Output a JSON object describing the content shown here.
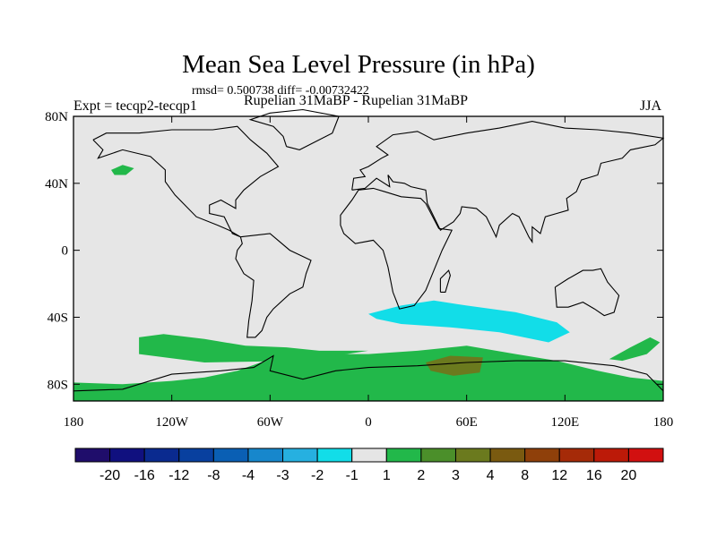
{
  "chart_data": {
    "type": "heatmap",
    "title": "Mean Sea Level Pressure (in hPa)",
    "stats": "rmsd= 0.500738 diff= -0.00732422",
    "left_label": "Expt = tecqp2-tecqp1",
    "center_label": "Rupelian  31MaBP - Rupelian  31MaBP",
    "right_label": "JJA",
    "projection": "cylindrical equidistant",
    "xlim": [
      -180,
      180
    ],
    "ylim": [
      -90,
      80
    ],
    "x_ticks": [
      {
        "value": -180,
        "label": "180"
      },
      {
        "value": -120,
        "label": "120W"
      },
      {
        "value": -60,
        "label": "60W"
      },
      {
        "value": 0,
        "label": "0"
      },
      {
        "value": 60,
        "label": "60E"
      },
      {
        "value": 120,
        "label": "120E"
      },
      {
        "value": 180,
        "label": "180"
      }
    ],
    "y_ticks": [
      {
        "value": 80,
        "label": "80N"
      },
      {
        "value": 40,
        "label": "40N"
      },
      {
        "value": 0,
        "label": "0"
      },
      {
        "value": -40,
        "label": "40S"
      },
      {
        "value": -80,
        "label": "80S"
      }
    ],
    "colorbar": {
      "labels": [
        "-20",
        "-16",
        "-12",
        "-8",
        "-4",
        "-3",
        "-2",
        "-1",
        "1",
        "2",
        "3",
        "4",
        "8",
        "12",
        "16",
        "20"
      ],
      "colors": [
        "#1f0d6b",
        "#10107f",
        "#0a2a8f",
        "#08409f",
        "#0a5fb4",
        "#1787cc",
        "#26b0e0",
        "#12dde8",
        "#e5e5e5",
        "#22b84a",
        "#4b8f2a",
        "#6b7a1e",
        "#7a5a10",
        "#8f400a",
        "#a52a08",
        "#bc1a08",
        "#d21010"
      ]
    },
    "regions": [
      {
        "level": "1 to 2",
        "color": "#22b84a",
        "points": [
          [
            -180,
            -79
          ],
          [
            -150,
            -80
          ],
          [
            -120,
            -78
          ],
          [
            -100,
            -76
          ],
          [
            -80,
            -72
          ],
          [
            -60,
            -65
          ],
          [
            -30,
            -62
          ],
          [
            0,
            -62
          ],
          [
            30,
            -60
          ],
          [
            60,
            -57
          ],
          [
            90,
            -62
          ],
          [
            115,
            -66
          ],
          [
            140,
            -72
          ],
          [
            160,
            -76
          ],
          [
            180,
            -78
          ],
          [
            180,
            -90
          ],
          [
            -180,
            -90
          ]
        ]
      },
      {
        "level": "1 to 2",
        "color": "#22b84a",
        "points": [
          [
            -140,
            -52
          ],
          [
            -125,
            -50
          ],
          [
            -100,
            -53
          ],
          [
            -75,
            -57
          ],
          [
            -50,
            -58
          ],
          [
            -30,
            -60
          ],
          [
            0,
            -60
          ],
          [
            -40,
            -66
          ],
          [
            -100,
            -67
          ],
          [
            -140,
            -62
          ]
        ]
      },
      {
        "level": "1 to 2",
        "color": "#22b84a",
        "points": [
          [
            -157,
            48
          ],
          [
            -150,
            51
          ],
          [
            -143,
            49
          ],
          [
            -148,
            45
          ],
          [
            -155,
            45
          ]
        ]
      },
      {
        "level": "1 to 2",
        "color": "#22b84a",
        "points": [
          [
            147,
            -65
          ],
          [
            160,
            -58
          ],
          [
            172,
            -52
          ],
          [
            178,
            -55
          ],
          [
            170,
            -62
          ],
          [
            155,
            -66
          ]
        ]
      },
      {
        "level": "-2 to -1",
        "color": "#12dde8",
        "points": [
          [
            0,
            -38
          ],
          [
            20,
            -33
          ],
          [
            40,
            -30
          ],
          [
            60,
            -33
          ],
          [
            90,
            -37
          ],
          [
            115,
            -43
          ],
          [
            123,
            -49
          ],
          [
            110,
            -55
          ],
          [
            80,
            -49
          ],
          [
            50,
            -46
          ],
          [
            20,
            -44
          ],
          [
            5,
            -41
          ]
        ]
      },
      {
        "level": "3 to 4",
        "color": "#6b7a1e",
        "points": [
          [
            35,
            -67
          ],
          [
            50,
            -63
          ],
          [
            70,
            -64
          ],
          [
            68,
            -73
          ],
          [
            52,
            -75
          ],
          [
            38,
            -72
          ]
        ]
      }
    ],
    "grid": false
  }
}
